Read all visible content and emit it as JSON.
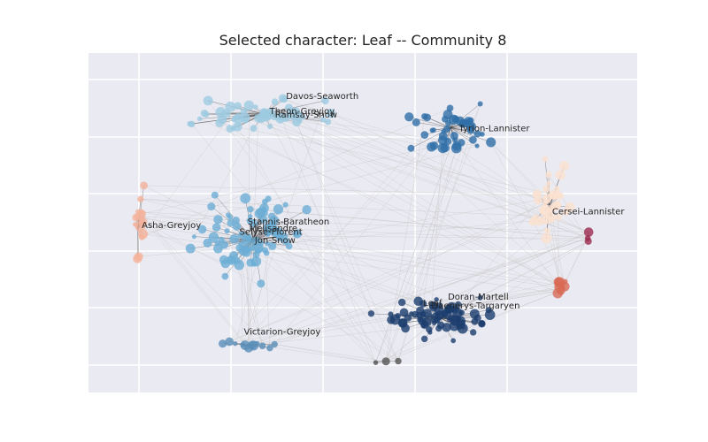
{
  "chart_data": {
    "type": "scatter",
    "subtype": "network-graph",
    "title": "Selected character: Leaf -- Community 8",
    "xlabel": "",
    "ylabel": "",
    "grid": true,
    "background": "#eaeaf2",
    "communities": [
      {
        "id": "c-lightblue",
        "color": "#9ecae1",
        "center": [
          0.32,
          0.18
        ],
        "spread": [
          0.11,
          0.04
        ],
        "count": 55
      },
      {
        "id": "c-blue",
        "color": "#2f6fa8",
        "center": [
          0.66,
          0.22
        ],
        "spread": [
          0.07,
          0.06
        ],
        "count": 45
      },
      {
        "id": "c-skyblue",
        "color": "#6baed6",
        "center": [
          0.3,
          0.55
        ],
        "spread": [
          0.08,
          0.1
        ],
        "count": 85
      },
      {
        "id": "c-navy",
        "color": "#1c3d6e",
        "center": [
          0.64,
          0.78
        ],
        "spread": [
          0.09,
          0.05
        ],
        "count": 70
      },
      {
        "id": "c-peach",
        "color": "#fbe1cf",
        "center": [
          0.84,
          0.45
        ],
        "spread": [
          0.03,
          0.12
        ],
        "count": 35
      },
      {
        "id": "c-salmon",
        "color": "#f4b29a",
        "center": [
          0.09,
          0.52
        ],
        "spread": [
          0.01,
          0.1
        ],
        "count": 16
      },
      {
        "id": "c-red",
        "color": "#d86a55",
        "center": [
          0.86,
          0.69
        ],
        "spread": [
          0.02,
          0.02
        ],
        "count": 8
      },
      {
        "id": "c-maroon",
        "color": "#9c2b4f",
        "center": [
          0.91,
          0.54
        ],
        "spread": [
          0.003,
          0.02
        ],
        "count": 3
      },
      {
        "id": "c-greyline",
        "color": "#5a8fb8",
        "center": [
          0.29,
          0.86
        ],
        "spread": [
          0.05,
          0.01
        ],
        "count": 12
      },
      {
        "id": "c-grey",
        "color": "#555555",
        "center": [
          0.52,
          0.91
        ],
        "spread": [
          0.04,
          0.01
        ],
        "count": 3
      }
    ],
    "labels": [
      {
        "text": "Davos-Seaworth",
        "x": 0.36,
        "y": 0.135
      },
      {
        "text": "Theon-Greyjoy",
        "x": 0.33,
        "y": 0.18
      },
      {
        "text": "Ramsay-Snow",
        "x": 0.34,
        "y": 0.19
      },
      {
        "text": "Tyrion-Lannister",
        "x": 0.675,
        "y": 0.23
      },
      {
        "text": "Cersei-Lannister",
        "x": 0.845,
        "y": 0.475
      },
      {
        "text": "Asha-Greyjoy",
        "x": 0.097,
        "y": 0.515
      },
      {
        "text": "Stannis-Baratheon",
        "x": 0.29,
        "y": 0.505
      },
      {
        "text": "Melisandre",
        "x": 0.293,
        "y": 0.525
      },
      {
        "text": "Selyse-Florent",
        "x": 0.275,
        "y": 0.535
      },
      {
        "text": "Jon-Snow",
        "x": 0.303,
        "y": 0.56
      },
      {
        "text": "Doran-Martell",
        "x": 0.655,
        "y": 0.727
      },
      {
        "text": "Leaf",
        "x": 0.61,
        "y": 0.745
      },
      {
        "text": "Daenerys-Targaryen",
        "x": 0.625,
        "y": 0.752
      },
      {
        "text": "Victarion-Greyjoy",
        "x": 0.283,
        "y": 0.83
      }
    ]
  }
}
